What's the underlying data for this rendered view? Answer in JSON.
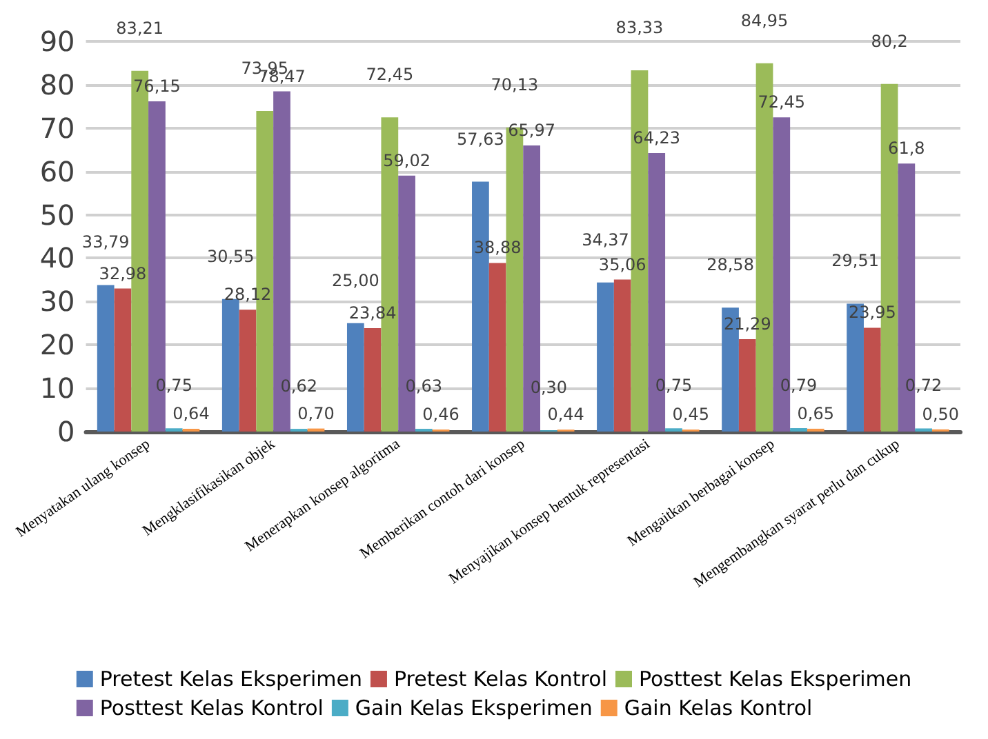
{
  "chart_data": {
    "type": "bar",
    "categories": [
      "Menyatakan ulang konsep",
      "Mengklasifikasikan objek",
      "Menerapkan konsep algoritma",
      "Memberikan contoh dari konsep",
      "Menyajikan konsep bentuk representasi",
      "Mengaitkan berbagai konsep",
      "Mengembangkan syarat perlu dan cukup"
    ],
    "series": [
      {
        "name": "Pretest Kelas Eksperimen",
        "color": "#4f81bd",
        "values": [
          33.79,
          30.55,
          25.0,
          57.63,
          34.37,
          28.58,
          29.51
        ],
        "value_labels": [
          "33,79",
          "30,55",
          "25,00",
          "57,63",
          "34,37",
          "28,58",
          "29,51"
        ]
      },
      {
        "name": "Pretest Kelas Kontrol",
        "color": "#c0504d",
        "values": [
          32.98,
          28.12,
          23.84,
          38.88,
          35.06,
          21.29,
          23.95
        ],
        "value_labels": [
          "32,98",
          "28,12",
          "23,84",
          "38,88",
          "35,06",
          "21,29",
          "23,95"
        ]
      },
      {
        "name": "Posttest Kelas Eksperimen",
        "color": "#9bbb59",
        "values": [
          83.21,
          73.95,
          72.45,
          70.13,
          83.33,
          84.95,
          80.2
        ],
        "value_labels": [
          "83,21",
          "73,95",
          "72,45",
          "70,13",
          "83,33",
          "84,95",
          "80,2"
        ]
      },
      {
        "name": "Posttest Kelas Kontrol",
        "color": "#8064a2",
        "values": [
          76.15,
          78.47,
          59.02,
          65.97,
          64.23,
          72.45,
          61.8
        ],
        "value_labels": [
          "76,15",
          "78,47",
          "59,02",
          "65,97",
          "64,23",
          "72,45",
          "61,8"
        ]
      },
      {
        "name": "Gain Kelas Eksperimen",
        "color": "#4bacc6",
        "values": [
          0.75,
          0.62,
          0.63,
          0.3,
          0.75,
          0.79,
          0.72
        ],
        "value_labels": [
          "0,75",
          "0,62",
          "0,63",
          "0,30",
          "0,75",
          "0,79",
          "0,72"
        ]
      },
      {
        "name": "Gain Kelas Kontrol",
        "color": "#f79646",
        "values": [
          0.64,
          0.7,
          0.46,
          0.44,
          0.45,
          0.65,
          0.5
        ],
        "value_labels": [
          "0,64",
          "0,70",
          "0,46",
          "0,44",
          "0,45",
          "0,65",
          "0,50"
        ]
      }
    ],
    "ylim": [
      0,
      90
    ],
    "yticks": [
      0,
      10,
      20,
      30,
      40,
      50,
      60,
      70,
      80,
      90
    ],
    "grid": "y",
    "legend": "bottom"
  }
}
